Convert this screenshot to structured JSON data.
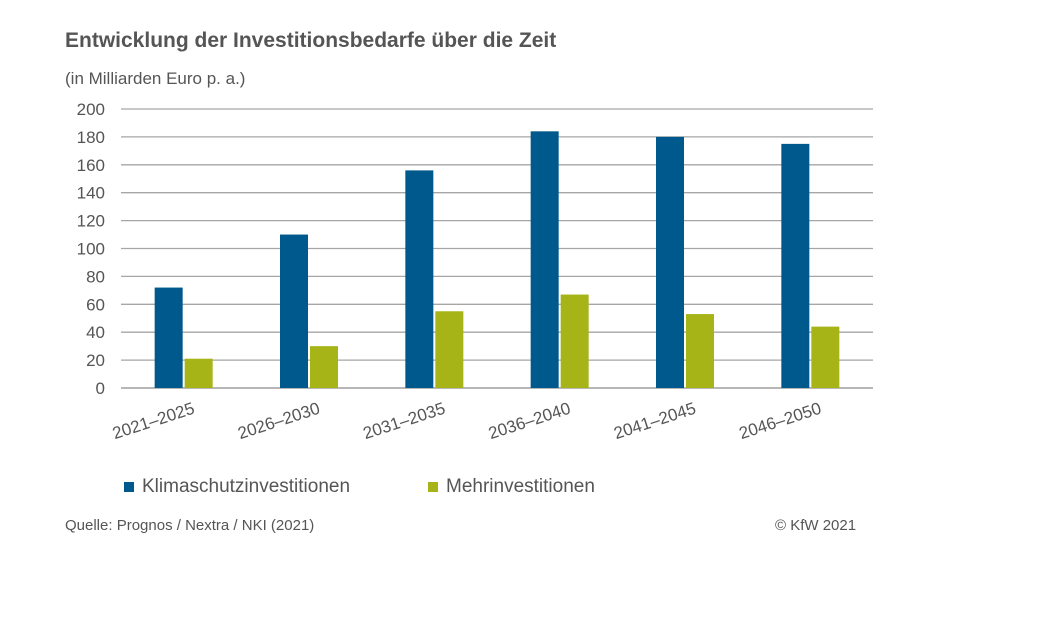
{
  "chart_data": {
    "type": "bar",
    "title": "Entwicklung der Investitionsbedarfe über die Zeit",
    "subtitle": "(in Milliarden Euro p. a.)",
    "categories": [
      "2021–2025",
      "2026–2030",
      "2031–2035",
      "2036–2040",
      "2041–2045",
      "2046–2050"
    ],
    "series": [
      {
        "name": "Klimaschutzinvestitionen",
        "color": "#00598c",
        "values": [
          72,
          110,
          156,
          184,
          180,
          175
        ]
      },
      {
        "name": "Mehrinvestitionen",
        "color": "#a6b418",
        "values": [
          21,
          30,
          55,
          67,
          53,
          44
        ]
      }
    ],
    "ylim": [
      0,
      200
    ],
    "yticks": [
      0,
      20,
      40,
      60,
      80,
      100,
      120,
      140,
      160,
      180,
      200
    ],
    "grid": true,
    "legend": "bottom"
  },
  "footer": {
    "source": "Quelle: Prognos / Nextra / NKI (2021)",
    "copyright": "© KfW 2021"
  }
}
